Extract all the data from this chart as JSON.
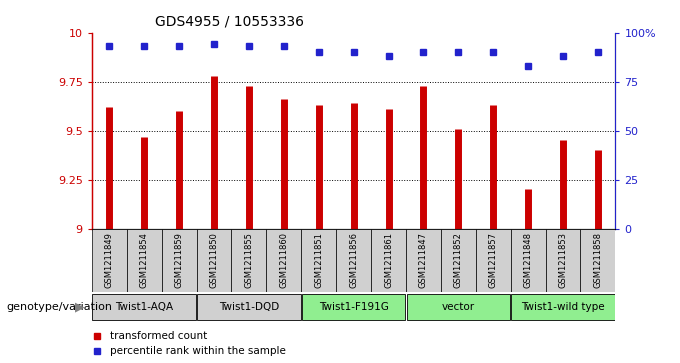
{
  "title": "GDS4955 / 10553336",
  "samples": [
    "GSM1211849",
    "GSM1211854",
    "GSM1211859",
    "GSM1211850",
    "GSM1211855",
    "GSM1211860",
    "GSM1211851",
    "GSM1211856",
    "GSM1211861",
    "GSM1211847",
    "GSM1211852",
    "GSM1211857",
    "GSM1211848",
    "GSM1211853",
    "GSM1211858"
  ],
  "bar_values": [
    9.62,
    9.47,
    9.6,
    9.78,
    9.73,
    9.66,
    9.63,
    9.64,
    9.61,
    9.73,
    9.51,
    9.63,
    9.2,
    9.45,
    9.4
  ],
  "percentile_values": [
    93,
    93,
    93,
    94,
    93,
    93,
    90,
    90,
    88,
    90,
    90,
    90,
    83,
    88,
    90
  ],
  "bar_color": "#cc0000",
  "percentile_color": "#2222cc",
  "ylim_left": [
    9.0,
    10.0
  ],
  "ylim_right": [
    0,
    100
  ],
  "yticks_left": [
    9.0,
    9.25,
    9.5,
    9.75,
    10.0
  ],
  "ytick_labels_left": [
    "9",
    "9.25",
    "9.5",
    "9.75",
    "10"
  ],
  "yticks_right": [
    0,
    25,
    50,
    75,
    100
  ],
  "ytick_labels_right": [
    "0",
    "25",
    "50",
    "75",
    "100%"
  ],
  "groups": [
    {
      "label": "Twist1-AQA",
      "start": 0,
      "end": 2,
      "color": "#d0d0d0"
    },
    {
      "label": "Twist1-DQD",
      "start": 3,
      "end": 5,
      "color": "#d0d0d0"
    },
    {
      "label": "Twist1-F191G",
      "start": 6,
      "end": 8,
      "color": "#90ee90"
    },
    {
      "label": "vector",
      "start": 9,
      "end": 11,
      "color": "#90ee90"
    },
    {
      "label": "Twist1-wild type",
      "start": 12,
      "end": 14,
      "color": "#90ee90"
    }
  ],
  "legend_red": "transformed count",
  "legend_blue": "percentile rank within the sample",
  "genotype_label": "genotype/variation",
  "axis_left_color": "#cc0000",
  "axis_right_color": "#2222cc",
  "grid_dotted_at": [
    9.25,
    9.5,
    9.75
  ],
  "bar_baseline": 9.0
}
